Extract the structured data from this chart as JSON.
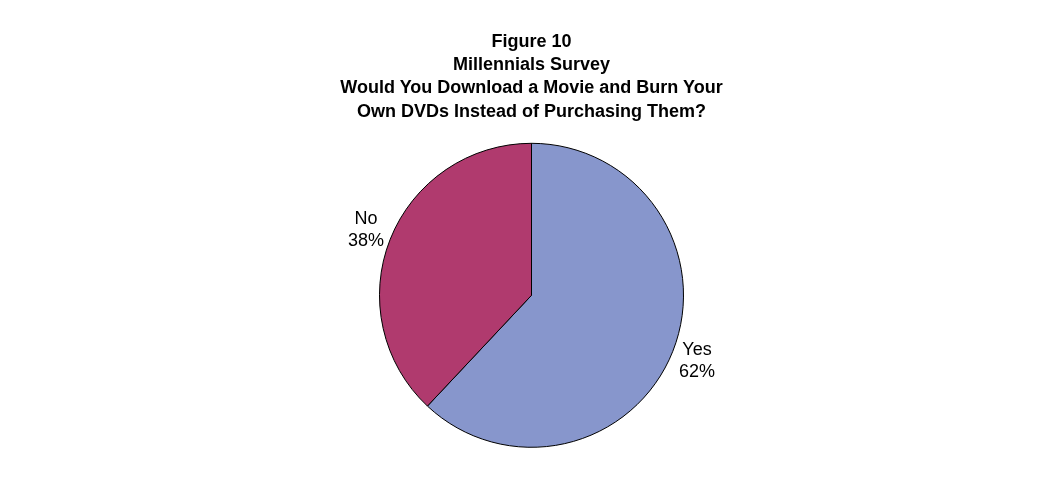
{
  "chart_data": {
    "type": "pie",
    "title": "Figure 10\nMillennials Survey\nWould You Download a Movie and Burn Your\nOwn DVDs Instead of Purchasing Them?",
    "categories": [
      "Yes",
      "No"
    ],
    "values": [
      62,
      38
    ],
    "colors": [
      "#8796cc",
      "#b03a6e"
    ],
    "value_labels": [
      "62%",
      "38%"
    ],
    "legend": false
  }
}
